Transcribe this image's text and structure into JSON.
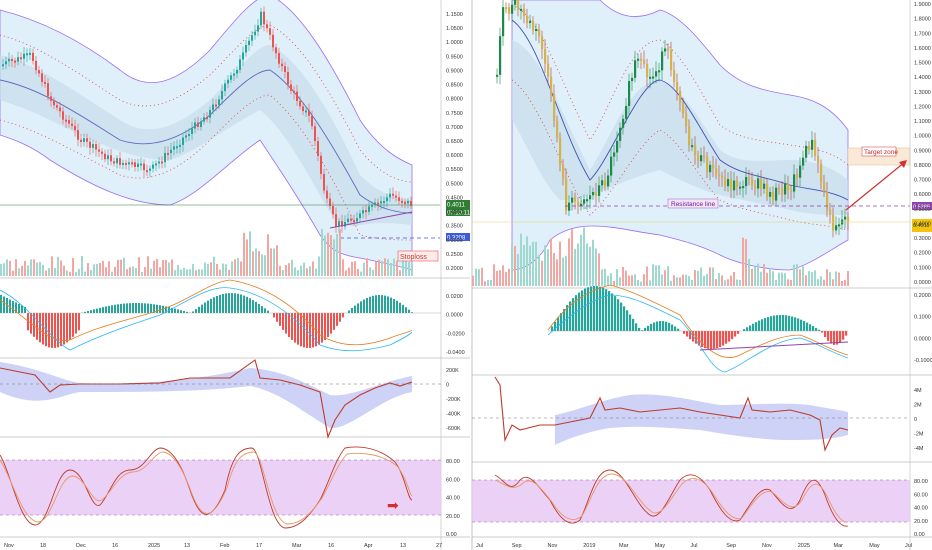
{
  "colors": {
    "up": "#26a69a",
    "down": "#ef5350",
    "body_up_right": "#1b8a4a",
    "body_down_right": "#d4b44a",
    "band_fill": "#d6ecf8",
    "band_dark": "#b9c7d6",
    "outer_band": "#8a5cf6",
    "mid_band": "#5c6bc0",
    "dots": "#e53935",
    "purple_zone": "#e7c6f5",
    "stoch_k": "#c0392b",
    "stoch_d": "#e59866",
    "price_line": "#2e7d32"
  },
  "left_chart": {
    "y_ticks": [
      "1.1500",
      "1.0500",
      "1.0000",
      "0.9500",
      "0.9000",
      "0.8500",
      "0.8000",
      "0.7500",
      "0.7000",
      "0.6500",
      "0.6000",
      "0.5500",
      "0.5000",
      "0.4500",
      "0.4000",
      "0.3500",
      "0.3000",
      "0.2500",
      "0.2000"
    ],
    "price_tag_1": "0.4011",
    "price_tag_2": "07:10:11",
    "price_tag_3": "0.3208",
    "stoploss_label": "Stoploss",
    "macd_ticks": [
      "0.0200",
      "0.0000",
      "-0.0200",
      "-0.0400"
    ],
    "obv_ticks": [
      "200K",
      "0",
      "-200K",
      "-400K",
      "-600K"
    ],
    "stoch_ticks": [
      "80.00",
      "60.00",
      "40.00",
      "20.00",
      "0.00"
    ],
    "x_ticks": [
      "Nov",
      "18",
      "Dec",
      "16",
      "2025",
      "13",
      "Feb",
      "17",
      "Mar",
      "16",
      "Apr",
      "13",
      "27"
    ]
  },
  "right_chart": {
    "y_ticks": [
      "1.9000",
      "1.8000",
      "1.7000",
      "1.6000",
      "1.5000",
      "1.4000",
      "1.3000",
      "1.2000",
      "1.1000",
      "1.0000",
      "0.9000",
      "0.8000",
      "0.7000",
      "0.6000",
      "0.5000",
      "0.4000",
      "0.3000",
      "0.2000",
      "0.1000",
      "0.0000"
    ],
    "target_label": "Target zone",
    "resistance_label": "Resistance line",
    "price_tag_1": "0.5389",
    "price_tag_2": "0.4011",
    "macd_ticks": [
      "0.2000",
      "0.1000",
      "0.0000",
      "-0.1000"
    ],
    "obv_ticks": [
      "4M",
      "2M",
      "0",
      "-2M",
      "-4M"
    ],
    "stoch_ticks": [
      "80.00",
      "60.00",
      "40.00",
      "20.00",
      "0.00"
    ],
    "x_ticks": [
      "Jul",
      "Sep",
      "Nov",
      "2019",
      "Mar",
      "May",
      "Jul",
      "Sep",
      "Nov",
      "2025",
      "Mar",
      "May",
      "Jul"
    ]
  }
}
